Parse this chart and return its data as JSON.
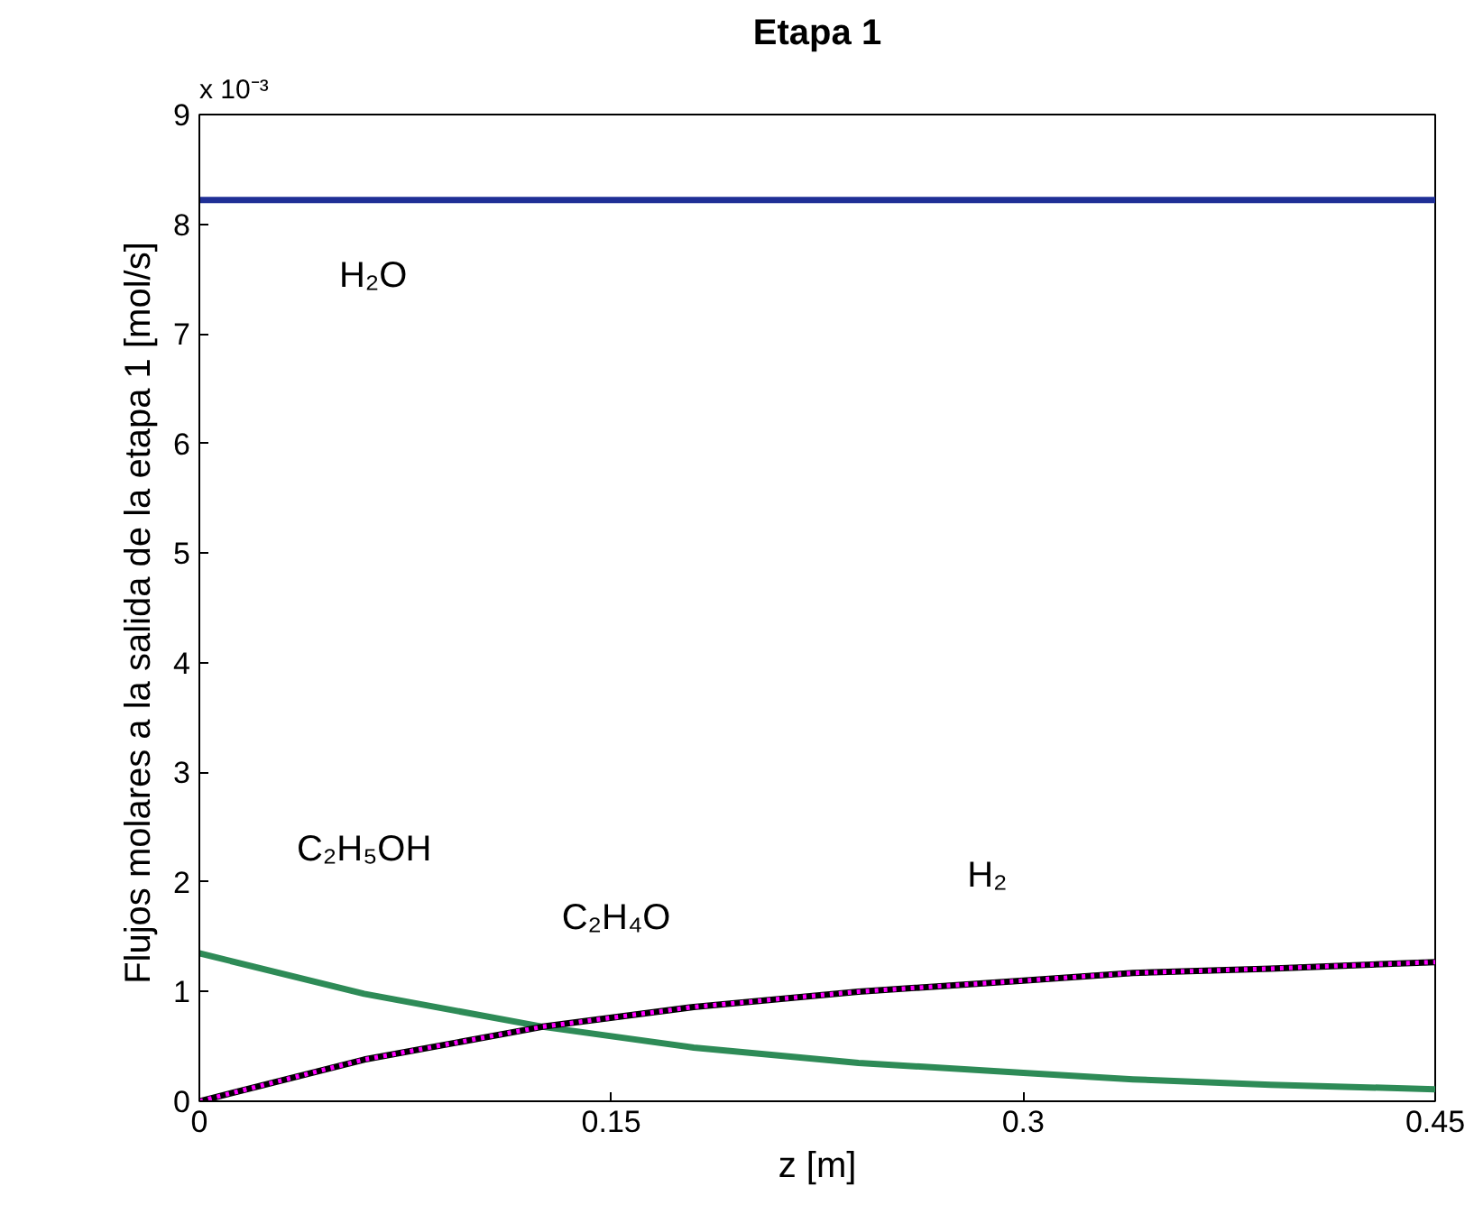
{
  "chart_data": {
    "type": "line",
    "title": "Etapa 1",
    "xlabel": "z [m]",
    "ylabel": "Flujos  molares a la salida de la etapa 1 [mol/s]",
    "x": [
      0,
      0.06,
      0.125,
      0.18,
      0.24,
      0.3,
      0.34,
      0.39,
      0.45
    ],
    "series": [
      {
        "name": "H₂O",
        "color": "#1f2f96",
        "values": [
          8.22,
          8.22,
          8.22,
          8.22,
          8.22,
          8.22,
          8.22,
          8.22,
          8.22
        ],
        "line_style": "solid"
      },
      {
        "name": "C₂H₅OH",
        "color": "#2e8b57",
        "values": [
          1.35,
          0.98,
          0.68,
          0.49,
          0.35,
          0.26,
          0.2,
          0.15,
          0.11
        ],
        "line_style": "solid"
      },
      {
        "name": "C₂H₄O",
        "color": "#000000",
        "values": [
          0,
          0.38,
          0.68,
          0.86,
          1.0,
          1.1,
          1.17,
          1.21,
          1.27
        ],
        "line_style": "solid"
      },
      {
        "name": "H₂",
        "color": "#ff00ff",
        "values": [
          0,
          0.38,
          0.68,
          0.86,
          1.0,
          1.1,
          1.17,
          1.21,
          1.27
        ],
        "line_style": "dotted"
      }
    ],
    "xlim": [
      0,
      0.45
    ],
    "xticks": [
      0,
      0.15,
      0.3,
      0.45
    ],
    "ylim": [
      0,
      9
    ],
    "yticks": [
      0,
      1,
      2,
      3,
      4,
      5,
      6,
      7,
      8,
      9
    ],
    "grid": false,
    "legend": false,
    "marker": "none",
    "annotations": [
      "x 10⁻³"
    ]
  }
}
